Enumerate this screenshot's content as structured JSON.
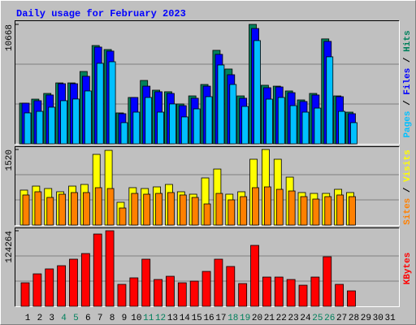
{
  "chart_data": [
    {
      "type": "bar",
      "title": "Daily usage for February 2023",
      "separator": "/",
      "ylim": [
        0,
        10668
      ],
      "yticks": [
        10668
      ],
      "series": [
        {
          "name": "Hits",
          "color": "#00805c",
          "values": [
            3630,
            3990,
            4500,
            5440,
            5440,
            6460,
            8780,
            8420,
            2760,
            4140,
            5660,
            4790,
            4650,
            3560,
            4280,
            5300,
            8350,
            6680,
            4280,
            10668,
            5230,
            5150,
            4720,
            3920,
            4500,
            9370,
            4280,
            2830,
            null,
            null,
            null
          ]
        },
        {
          "name": "Files",
          "color": "#0000ff",
          "values": [
            3630,
            3850,
            4360,
            5370,
            5370,
            6030,
            8640,
            8280,
            2690,
            4140,
            5150,
            4650,
            4500,
            3410,
            4070,
            5150,
            7990,
            6170,
            4070,
            10300,
            5010,
            5080,
            4570,
            3780,
            4360,
            9150,
            4210,
            2690,
            null,
            null,
            null
          ]
        },
        {
          "name": "Pages",
          "color": "#00c0ff",
          "values": [
            2760,
            2900,
            3270,
            3850,
            4000,
            4720,
            7190,
            7330,
            1890,
            2830,
            4140,
            2830,
            3560,
            2400,
            3120,
            4210,
            7040,
            5300,
            3340,
            9220,
            3990,
            4140,
            3410,
            2830,
            3190,
            7770,
            2900,
            1890,
            null,
            null,
            null
          ]
        }
      ]
    },
    {
      "type": "bar",
      "separator": "/",
      "ylim": [
        0,
        1520
      ],
      "yticks": [
        1520
      ],
      "series": [
        {
          "name": "Visits",
          "color": "#ffff00",
          "values": [
            703,
            784,
            735,
            670,
            784,
            817,
            1422,
            1503,
            458,
            752,
            735,
            768,
            817,
            670,
            621,
            948,
            1127,
            621,
            670,
            1324,
            1520,
            1324,
            964,
            654,
            637,
            637,
            719,
            654,
            null,
            null,
            null
          ]
        },
        {
          "name": "Sites",
          "color": "#ff8000",
          "values": [
            605,
            670,
            556,
            621,
            654,
            654,
            752,
            735,
            343,
            637,
            621,
            637,
            654,
            605,
            556,
            425,
            637,
            507,
            572,
            752,
            768,
            719,
            686,
            572,
            523,
            572,
            605,
            572,
            null,
            null,
            null
          ]
        }
      ]
    },
    {
      "type": "bar",
      "ylim": [
        0,
        124264
      ],
      "yticks": [
        124264
      ],
      "categories": [
        "1",
        "2",
        "3",
        "4",
        "5",
        "6",
        "7",
        "8",
        "9",
        "10",
        "11",
        "12",
        "13",
        "14",
        "15",
        "16",
        "17",
        "18",
        "19",
        "20",
        "21",
        "22",
        "23",
        "24",
        "25",
        "26",
        "27",
        "28",
        "29",
        "30",
        "31"
      ],
      "category_colors": [
        "#000000",
        "#000000",
        "#000000",
        "#00805c",
        "#00805c",
        "#000000",
        "#000000",
        "#000000",
        "#000000",
        "#000000",
        "#00805c",
        "#00805c",
        "#000000",
        "#000000",
        "#000000",
        "#000000",
        "#000000",
        "#00805c",
        "#00805c",
        "#000000",
        "#000000",
        "#000000",
        "#000000",
        "#000000",
        "#00805c",
        "#00805c",
        "#000000",
        "#000000",
        "#000000",
        "#000000",
        "#000000"
      ],
      "series": [
        {
          "name": "KBytes",
          "color": "#ff0000",
          "values": [
            38700,
            53400,
            61500,
            66800,
            77500,
            86800,
            118900,
            124264,
            36100,
            46800,
            77500,
            44100,
            49400,
            38700,
            41400,
            57400,
            77500,
            65500,
            37400,
            100200,
            48100,
            48100,
            44100,
            34700,
            48100,
            81500,
            36100,
            25400,
            null,
            null,
            null
          ]
        }
      ]
    }
  ]
}
